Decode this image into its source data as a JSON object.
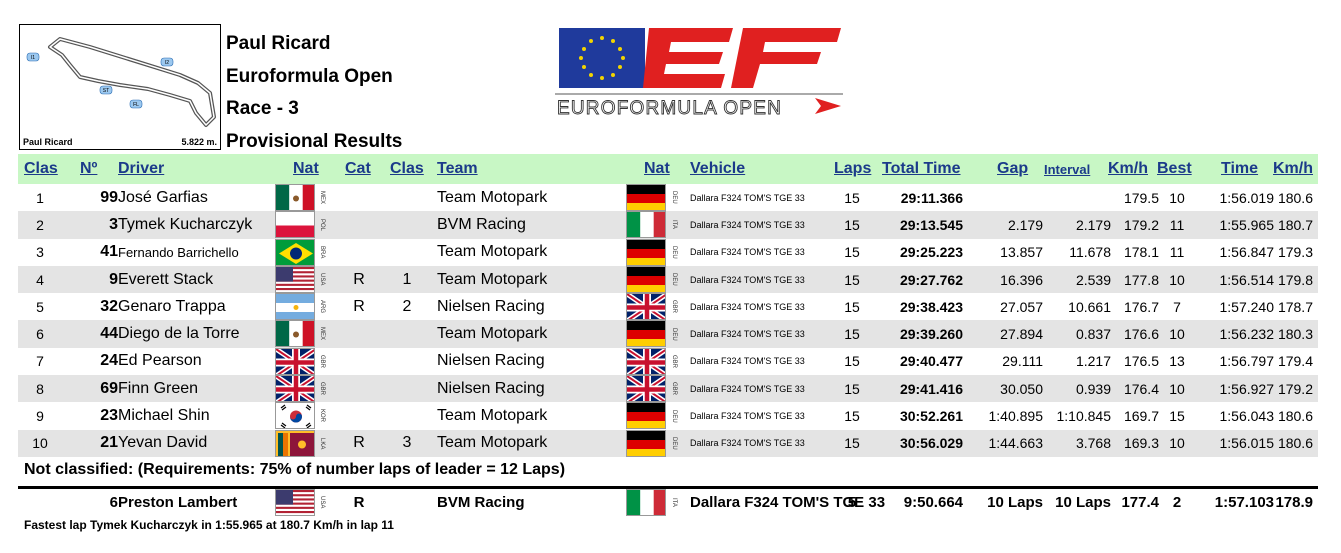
{
  "track": {
    "name": "Paul Ricard",
    "length": "5.822 m.",
    "markers": [
      "I1",
      "I2",
      "ST",
      "FL"
    ]
  },
  "header": {
    "circuit": "Paul Ricard",
    "series": "Euroformula Open",
    "race": "Race - 3",
    "doc_title": "Provisional Results"
  },
  "logo": {
    "letters": "EF",
    "text": "EUROFORMULA OPEN",
    "brand_red": "#e02020",
    "eu_blue": "#1f3a9c"
  },
  "columns": {
    "clas": "Clas",
    "num": "Nº",
    "driver": "Driver",
    "nat": "Nat",
    "cat": "Cat",
    "clas2": "Clas",
    "team": "Team",
    "team_nat": "Nat",
    "vehicle": "Vehicle",
    "laps": "Laps",
    "total_time": "Total Time",
    "gap": "Gap",
    "interval": "Interval",
    "kmh": "Km/h",
    "best": "Best",
    "time": "Time",
    "kmh2": "Km/h"
  },
  "rows": [
    {
      "pos": "1",
      "num": "99",
      "driver": "José Garfias",
      "flag": "mex",
      "nat": "MEX",
      "cat": "",
      "clas": "",
      "team": "Team Motopark",
      "tflag": "deu",
      "tnat": "DEU",
      "vehicle": "Dallara F324 TOM'S TGE 33",
      "laps": "15",
      "total": "29:11.366",
      "gap": "",
      "interval": "",
      "kmh": "179.5",
      "best": "10",
      "time": "1:56.019",
      "kmh2": "180.6"
    },
    {
      "pos": "2",
      "num": "3",
      "driver": "Tymek Kucharczyk",
      "flag": "pol",
      "nat": "POL",
      "cat": "",
      "clas": "",
      "team": "BVM Racing",
      "tflag": "ita",
      "tnat": "ITA",
      "vehicle": "Dallara F324 TOM'S TGE 33",
      "laps": "15",
      "total": "29:13.545",
      "gap": "2.179",
      "interval": "2.179",
      "kmh": "179.2",
      "best": "11",
      "time": "1:55.965",
      "kmh2": "180.7"
    },
    {
      "pos": "3",
      "num": "41",
      "driver": "Fernando Barrichello",
      "flag": "bra",
      "nat": "BRA",
      "cat": "",
      "clas": "",
      "team": "Team Motopark",
      "tflag": "deu",
      "tnat": "DEU",
      "vehicle": "Dallara F324 TOM'S TGE 33",
      "laps": "15",
      "total": "29:25.223",
      "gap": "13.857",
      "interval": "11.678",
      "kmh": "178.1",
      "best": "11",
      "time": "1:56.847",
      "kmh2": "179.3",
      "small": true
    },
    {
      "pos": "4",
      "num": "9",
      "driver": "Everett Stack",
      "flag": "usa",
      "nat": "USA",
      "cat": "R",
      "clas": "1",
      "team": "Team Motopark",
      "tflag": "deu",
      "tnat": "DEU",
      "vehicle": "Dallara F324 TOM'S TGE 33",
      "laps": "15",
      "total": "29:27.762",
      "gap": "16.396",
      "interval": "2.539",
      "kmh": "177.8",
      "best": "10",
      "time": "1:56.514",
      "kmh2": "179.8"
    },
    {
      "pos": "5",
      "num": "32",
      "driver": "Genaro Trappa",
      "flag": "arg",
      "nat": "ARG",
      "cat": "R",
      "clas": "2",
      "team": "Nielsen Racing",
      "tflag": "gbr",
      "tnat": "GBR",
      "vehicle": "Dallara F324 TOM'S TGE 33",
      "laps": "15",
      "total": "29:38.423",
      "gap": "27.057",
      "interval": "10.661",
      "kmh": "176.7",
      "best": "7",
      "time": "1:57.240",
      "kmh2": "178.7"
    },
    {
      "pos": "6",
      "num": "44",
      "driver": "Diego de la Torre",
      "flag": "mex",
      "nat": "MEX",
      "cat": "",
      "clas": "",
      "team": "Team Motopark",
      "tflag": "deu",
      "tnat": "DEU",
      "vehicle": "Dallara F324 TOM'S TGE 33",
      "laps": "15",
      "total": "29:39.260",
      "gap": "27.894",
      "interval": "0.837",
      "kmh": "176.6",
      "best": "10",
      "time": "1:56.232",
      "kmh2": "180.3"
    },
    {
      "pos": "7",
      "num": "24",
      "driver": "Ed Pearson",
      "flag": "gbr",
      "nat": "GBR",
      "cat": "",
      "clas": "",
      "team": "Nielsen Racing",
      "tflag": "gbr",
      "tnat": "GBR",
      "vehicle": "Dallara F324 TOM'S TGE 33",
      "laps": "15",
      "total": "29:40.477",
      "gap": "29.111",
      "interval": "1.217",
      "kmh": "176.5",
      "best": "13",
      "time": "1:56.797",
      "kmh2": "179.4"
    },
    {
      "pos": "8",
      "num": "69",
      "driver": "Finn Green",
      "flag": "gbr",
      "nat": "GBR",
      "cat": "",
      "clas": "",
      "team": "Nielsen Racing",
      "tflag": "gbr",
      "tnat": "GBR",
      "vehicle": "Dallara F324 TOM'S TGE 33",
      "laps": "15",
      "total": "29:41.416",
      "gap": "30.050",
      "interval": "0.939",
      "kmh": "176.4",
      "best": "10",
      "time": "1:56.927",
      "kmh2": "179.2"
    },
    {
      "pos": "9",
      "num": "23",
      "driver": "Michael Shin",
      "flag": "kor",
      "nat": "KOR",
      "cat": "",
      "clas": "",
      "team": "Team Motopark",
      "tflag": "deu",
      "tnat": "DEU",
      "vehicle": "Dallara F324 TOM'S TGE 33",
      "laps": "15",
      "total": "30:52.261",
      "gap": "1:40.895",
      "interval": "1:10.845",
      "kmh": "169.7",
      "best": "15",
      "time": "1:56.043",
      "kmh2": "180.6"
    },
    {
      "pos": "10",
      "num": "21",
      "driver": "Yevan David",
      "flag": "lka",
      "nat": "LKA",
      "cat": "R",
      "clas": "3",
      "team": "Team Motopark",
      "tflag": "deu",
      "tnat": "DEU",
      "vehicle": "Dallara F324 TOM'S TGE 33",
      "laps": "15",
      "total": "30:56.029",
      "gap": "1:44.663",
      "interval": "3.768",
      "kmh": "169.3",
      "best": "10",
      "time": "1:56.015",
      "kmh2": "180.6"
    }
  ],
  "not_classified": {
    "title": "Not classified: (Requirements: 75% of number laps of leader = 12 Laps)",
    "rows": [
      {
        "pos": "",
        "num": "6",
        "driver": "Preston Lambert",
        "flag": "usa",
        "nat": "USA",
        "cat": "R",
        "clas": "",
        "team": "BVM Racing",
        "tflag": "ita",
        "tnat": "ITA",
        "vehicle": "Dallara F324 TOM'S TGE 33",
        "laps": "5",
        "total": "9:50.664",
        "gap": "10 Laps",
        "interval": "10 Laps",
        "kmh": "177.4",
        "best": "2",
        "time": "1:57.103",
        "kmh2": "178.9"
      }
    ]
  },
  "footer": "Fastest lap Tymek Kucharczyk in 1:55.965 at 180.7 Km/h in lap 11",
  "colors": {
    "header_bg": "#c8f7c5",
    "header_text": "#1b3a8a",
    "row_shade": "#e4e4e4"
  }
}
